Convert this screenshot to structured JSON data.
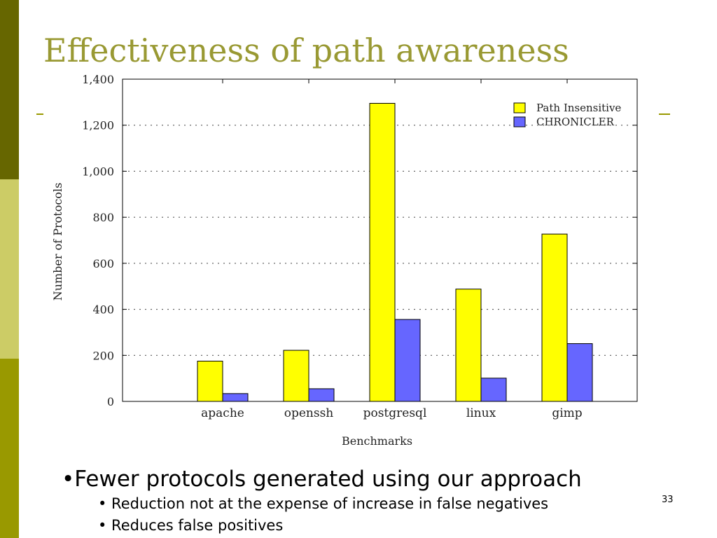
{
  "slide": {
    "title": "Effectiveness of path awareness",
    "page_number": "33",
    "colors": {
      "title": "#999933",
      "sidebar_dark": "#666600",
      "sidebar_light": "#cccc66",
      "sidebar_mid": "#999900"
    }
  },
  "bullets": {
    "main": "•Fewer protocols generated using our approach",
    "sub": [
      "• Reduction not at the expense of increase in false negatives",
      "• Reduces false positives"
    ]
  },
  "chart_data": {
    "type": "bar",
    "categories": [
      "apache",
      "openssh",
      "postgresql",
      "linux",
      "gimp"
    ],
    "series": [
      {
        "name": "Path Insensitive",
        "color": "#ffff00",
        "values": [
          175,
          222,
          1295,
          488,
          727
        ]
      },
      {
        "name": "CHRONICLER",
        "color": "#6666ff",
        "values": [
          34,
          55,
          356,
          101,
          251
        ]
      }
    ],
    "title": "",
    "xlabel": "Benchmarks",
    "ylabel": "Number of Protocols",
    "ylim": [
      0,
      1400
    ],
    "yticks": [
      {
        "value": 0,
        "label": "0"
      },
      {
        "value": 200,
        "label": "200"
      },
      {
        "value": 400,
        "label": "400"
      },
      {
        "value": 600,
        "label": "600"
      },
      {
        "value": 800,
        "label": "800"
      },
      {
        "value": 1000,
        "label": "1,000"
      },
      {
        "value": 1200,
        "label": "1,200"
      },
      {
        "value": 1400,
        "label": "1,400"
      }
    ],
    "grid": true,
    "legend": "top-right"
  }
}
